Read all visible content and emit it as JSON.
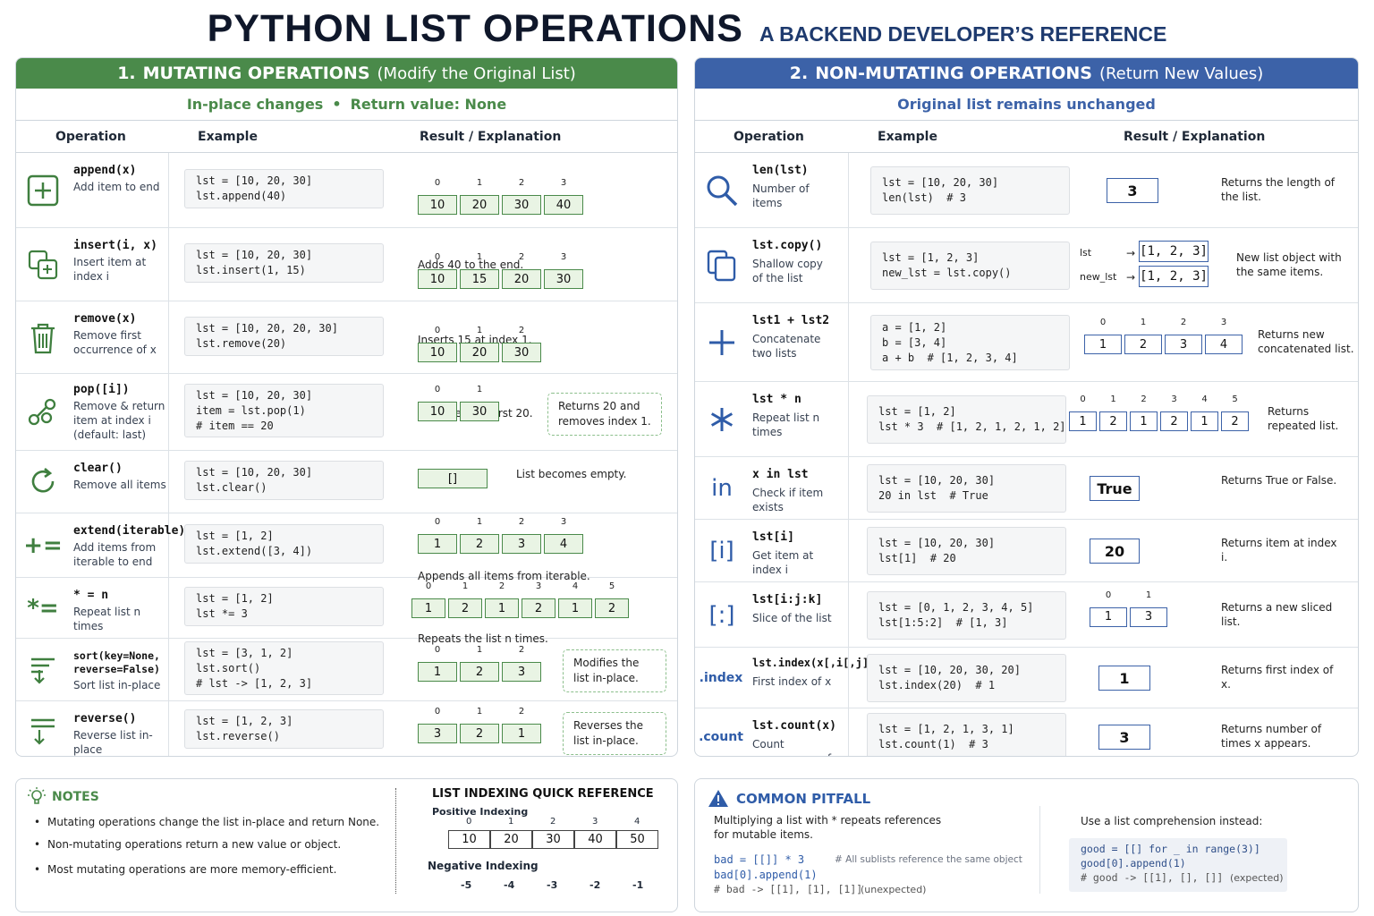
{
  "title": "PYTHON LIST OPERATIONS",
  "subtitle": "A BACKEND DEVELOPER’S REFERENCE",
  "mutating": {
    "num": "1.",
    "title": "MUTATING OPERATIONS",
    "title_note": "(Modify the Original List)",
    "sub_a": "In-place changes",
    "sub_b": "Return value: None",
    "col_op": "Operation",
    "col_ex": "Example",
    "col_res": "Result / Explanation",
    "rows": [
      {
        "op": "append(x)",
        "desc": "Add item to end",
        "code": "lst = [10, 20, 30]\nlst.append(40)",
        "cells": [
          "10",
          "20",
          "30",
          "40"
        ],
        "idx": [
          "0",
          "1",
          "2",
          "3"
        ],
        "note": "Adds 40 to the end."
      },
      {
        "op": "insert(i, x)",
        "desc": "Insert item at index i",
        "code": "lst = [10, 20, 30]\nlst.insert(1, 15)",
        "cells": [
          "10",
          "15",
          "20",
          "30"
        ],
        "idx": [
          "0",
          "1",
          "2",
          "3"
        ],
        "note": "Inserts 15 at index 1."
      },
      {
        "op": "remove(x)",
        "desc": "Remove first occurrence of x",
        "code": "lst = [10, 20, 20, 30]\nlst.remove(20)",
        "cells": [
          "10",
          "20",
          "30"
        ],
        "idx": [
          "0",
          "1",
          "2"
        ],
        "note": "Removes the first 20."
      },
      {
        "op": "pop([i])",
        "desc": "Remove & return item at index i (default: last)",
        "code": "lst = [10, 20, 30]\nitem = lst.pop(1)\n# item == 20",
        "cells": [
          "10",
          "30"
        ],
        "idx": [
          "0",
          "1"
        ],
        "note": "Returns 20  and removes index 1."
      },
      {
        "op": "clear()",
        "desc": "Remove all items",
        "code": "lst = [10, 20, 30]\nlst.clear()",
        "cells": [
          "[]"
        ],
        "idx": [
          ""
        ],
        "note": "List becomes empty."
      },
      {
        "op": "extend(iterable)",
        "desc": "Add items from iterable to end",
        "code": "lst = [1, 2]\nlst.extend([3, 4])",
        "cells": [
          "1",
          "2",
          "3",
          "4"
        ],
        "idx": [
          "0",
          "1",
          "2",
          "3"
        ],
        "note": "Appends all items from iterable."
      },
      {
        "op": "* = n",
        "desc": "Repeat list n times",
        "code": "lst = [1, 2]\nlst *= 3",
        "cells": [
          "1",
          "2",
          "1",
          "2",
          "1",
          "2"
        ],
        "idx": [
          "0",
          "1",
          "2",
          "3",
          "4",
          "5"
        ],
        "note": "Repeats the list n times."
      },
      {
        "op": "sort(key=None, reverse=False)",
        "desc": "Sort list in-place",
        "code": "lst = [3, 1, 2]\nlst.sort()\n# lst -> [1, 2, 3]",
        "cells": [
          "1",
          "2",
          "3"
        ],
        "idx": [
          "0",
          "1",
          "2"
        ],
        "note": "Modifies the list in-place."
      },
      {
        "op": "reverse()",
        "desc": "Reverse list in-place",
        "code": "lst = [1, 2, 3]\nlst.reverse()",
        "cells": [
          "3",
          "2",
          "1"
        ],
        "idx": [
          "0",
          "1",
          "2"
        ],
        "note": "Reverses the list in-place."
      }
    ]
  },
  "nonmutating": {
    "num": "2.",
    "title": "NON-MUTATING OPERATIONS",
    "title_note": "(Return New Values)",
    "sub": "Original list remains unchanged",
    "col_op": "Operation",
    "col_ex": "Example",
    "col_res": "Result / Explanation",
    "rows": [
      {
        "icon": "search-icon",
        "op": "len(lst)",
        "desc": "Number of items",
        "code": "lst = [10, 20, 30]\nlen(lst)  # 3",
        "result": "3",
        "note": "Returns the length of the list."
      },
      {
        "icon": "copy-icon",
        "op": "lst.copy()",
        "desc": "Shallow copy of the list",
        "code": "lst = [1, 2, 3]\nnew_lst = lst.copy()",
        "label_a": "lst",
        "label_b": "new_lst",
        "result_a": "[1, 2, 3]",
        "result_b": "[1, 2, 3]",
        "note": "New list object with the same items."
      },
      {
        "icon": "plus-icon",
        "op": "lst1 + lst2",
        "desc": "Concatenate two lists",
        "code": "a = [1, 2]\nb = [3, 4]\na + b  # [1, 2, 3, 4]",
        "cells": [
          "1",
          "2",
          "3",
          "4"
        ],
        "idx": [
          "0",
          "1",
          "2",
          "3"
        ],
        "note": "Returns new concatenated list."
      },
      {
        "icon": "asterisk-icon",
        "op": "lst * n",
        "desc": "Repeat list n times",
        "code": "lst = [1, 2]\nlst * 3  # [1, 2, 1, 2, 1, 2]",
        "cells": [
          "1",
          "2",
          "1",
          "2",
          "1",
          "2"
        ],
        "idx": [
          "0",
          "1",
          "2",
          "3",
          "4",
          "5"
        ],
        "note": "Returns repeated list."
      },
      {
        "icon": "in-icon",
        "icon_text": "in",
        "op": "x in lst",
        "desc": "Check if item exists",
        "code": "lst = [10, 20, 30]\n20 in lst  # True",
        "result": "True",
        "note": "Returns True or False."
      },
      {
        "icon": "index-bracket-icon",
        "icon_text": "[i]",
        "op": "lst[i]",
        "desc": "Get item at index i",
        "code": "lst = [10, 20, 30]\nlst[1]  # 20",
        "result": "20",
        "note": "Returns item at index i."
      },
      {
        "icon": "slice-icon",
        "icon_text": "[:]",
        "op": "lst[i:j:k]",
        "desc": "Slice of the list",
        "code": "lst = [0, 1, 2, 3, 4, 5]\nlst[1:5:2]  # [1, 3]",
        "cells": [
          "1",
          "3"
        ],
        "idx": [
          "0",
          "1"
        ],
        "note": "Returns a new sliced list."
      },
      {
        "icon": "index-method-icon",
        "icon_text": ".index",
        "op": "lst.index(x[,i[,j]])",
        "desc": "First index of x",
        "code": "lst = [10, 20, 30, 20]\nlst.index(20)  # 1",
        "result": "1",
        "note": "Returns first index of x."
      },
      {
        "icon": "count-method-icon",
        "icon_text": ".count",
        "op": "lst.count(x)",
        "desc": "Count occurrences of x",
        "code": "lst = [1, 2, 1, 3, 1]\nlst.count(1)  # 3",
        "result": "3",
        "note": "Returns number of times x appears."
      }
    ]
  },
  "notes": {
    "title": "NOTES",
    "items": [
      "Mutating operations change the list in-place and return None.",
      "Non-mutating operations return a new value or object.",
      "Most mutating operations are more memory-efficient."
    ],
    "qr_title": "LIST INDEXING QUICK REFERENCE",
    "pos_label": "Positive Indexing",
    "pos_idx": [
      "0",
      "1",
      "2",
      "3",
      "4"
    ],
    "values": [
      "10",
      "20",
      "30",
      "40",
      "50"
    ],
    "neg_label": "Negative Indexing",
    "neg_idx": [
      "-5",
      "-4",
      "-3",
      "-2",
      "-1"
    ]
  },
  "pitfall": {
    "title": "COMMON PITFALL",
    "desc": "Multiplying a list with * repeats references for mutable items.",
    "bad_line1": "bad = [[]] * 3",
    "bad_comment": "# All sublists reference the same object",
    "bad_line2": "bad[0].append(1)",
    "bad_line3": "# bad -> [[1], [1], [1]]",
    "bad_tag": "(unexpected)",
    "good_label": "Use a list comprehension instead:",
    "good_line1": "good = [[] for _ in range(3)]",
    "good_line2": "good[0].append(1)",
    "good_line3": "# good -> [[1], [], []]",
    "good_tag": "(expected)"
  },
  "colors": {
    "green": "#4a8a4a",
    "blue": "#3c62a8",
    "cell_fill": "#e9f4e4"
  }
}
